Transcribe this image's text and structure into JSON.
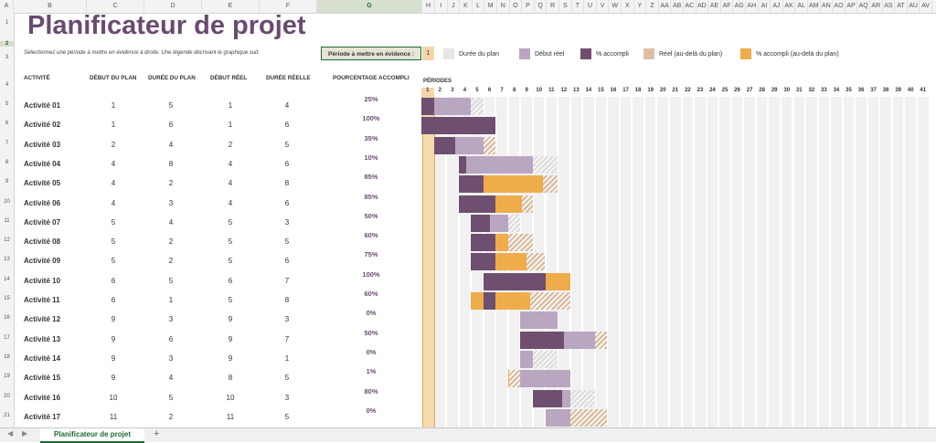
{
  "sheet": {
    "title": "Planificateur de projet",
    "subtitle": "Sélectionnez une période à mettre en évidence à droite.  Une légende décrivant le graphique suit.",
    "highlight_label": "Période à mettre en évidence :",
    "highlight_value": "1"
  },
  "legend": [
    {
      "label": "Durée du plan",
      "color": "#e6e6e6"
    },
    {
      "label": "Début réel",
      "color": "#b9a6c1"
    },
    {
      "label": "% accompli",
      "color": "#6f4f6f"
    },
    {
      "label": "Réel (au-delà du plan)",
      "color": "#dcc0a6"
    },
    {
      "label": "% accompli (au-delà du plan)",
      "color": "#eeac4a"
    }
  ],
  "headers": {
    "activity": "ACTIVITÉ",
    "plan_start": "DÉBUT DU PLAN",
    "plan_duration": "DURÉE DU PLAN",
    "actual_start": "DÉBUT RÉEL",
    "actual_duration": "DURÉE RÉELLE",
    "percent": "POURCENTAGE ACCOMPLI",
    "periods": "PÉRIODES"
  },
  "activities": [
    {
      "name": "Activité 01",
      "plan_start": "1",
      "plan_dur": "5",
      "act_start": "1",
      "act_dur": "4",
      "pct": "25%"
    },
    {
      "name": "Activité 02",
      "plan_start": "1",
      "plan_dur": "6",
      "act_start": "1",
      "act_dur": "6",
      "pct": "100%"
    },
    {
      "name": "Activité 03",
      "plan_start": "2",
      "plan_dur": "4",
      "act_start": "2",
      "act_dur": "5",
      "pct": "35%"
    },
    {
      "name": "Activité 04",
      "plan_start": "4",
      "plan_dur": "8",
      "act_start": "4",
      "act_dur": "6",
      "pct": "10%"
    },
    {
      "name": "Activité 05",
      "plan_start": "4",
      "plan_dur": "2",
      "act_start": "4",
      "act_dur": "8",
      "pct": "85%"
    },
    {
      "name": "Activité 06",
      "plan_start": "4",
      "plan_dur": "3",
      "act_start": "4",
      "act_dur": "6",
      "pct": "85%"
    },
    {
      "name": "Activité 07",
      "plan_start": "5",
      "plan_dur": "4",
      "act_start": "5",
      "act_dur": "3",
      "pct": "50%"
    },
    {
      "name": "Activité 08",
      "plan_start": "5",
      "plan_dur": "2",
      "act_start": "5",
      "act_dur": "5",
      "pct": "60%"
    },
    {
      "name": "Activité 09",
      "plan_start": "5",
      "plan_dur": "2",
      "act_start": "5",
      "act_dur": "6",
      "pct": "75%"
    },
    {
      "name": "Activité 10",
      "plan_start": "6",
      "plan_dur": "5",
      "act_start": "6",
      "act_dur": "7",
      "pct": "100%"
    },
    {
      "name": "Activité 11",
      "plan_start": "6",
      "plan_dur": "1",
      "act_start": "5",
      "act_dur": "8",
      "pct": "60%"
    },
    {
      "name": "Activité 12",
      "plan_start": "9",
      "plan_dur": "3",
      "act_start": "9",
      "act_dur": "3",
      "pct": "0%"
    },
    {
      "name": "Activité 13",
      "plan_start": "9",
      "plan_dur": "6",
      "act_start": "9",
      "act_dur": "7",
      "pct": "50%"
    },
    {
      "name": "Activité 14",
      "plan_start": "9",
      "plan_dur": "3",
      "act_start": "9",
      "act_dur": "1",
      "pct": "0%"
    },
    {
      "name": "Activité 15",
      "plan_start": "9",
      "plan_dur": "4",
      "act_start": "8",
      "act_dur": "5",
      "pct": "1%"
    },
    {
      "name": "Activité 16",
      "plan_start": "10",
      "plan_dur": "5",
      "act_start": "10",
      "act_dur": "3",
      "pct": "80%"
    },
    {
      "name": "Activité 17",
      "plan_start": "11",
      "plan_dur": "2",
      "act_start": "11",
      "act_dur": "5",
      "pct": "0%"
    }
  ],
  "periods": [
    "1",
    "2",
    "3",
    "4",
    "5",
    "6",
    "7",
    "8",
    "9",
    "10",
    "11",
    "12",
    "13",
    "14",
    "15",
    "16",
    "17",
    "18",
    "19",
    "20",
    "21",
    "22",
    "23",
    "24",
    "25",
    "26",
    "27",
    "28",
    "29",
    "30",
    "31",
    "32",
    "33",
    "34",
    "35",
    "36",
    "37",
    "38",
    "39",
    "40",
    "41"
  ],
  "columns": [
    "A",
    "B",
    "C",
    "D",
    "E",
    "F",
    "G",
    "H",
    "I",
    "J",
    "K",
    "L",
    "M",
    "N",
    "O",
    "P",
    "Q",
    "R",
    "S",
    "T",
    "U",
    "V",
    "W",
    "X",
    "Y",
    "Z",
    "AA",
    "AB",
    "AC",
    "AD",
    "AE",
    "AF",
    "AG",
    "AH",
    "AI",
    "AJ",
    "AK",
    "AL",
    "AM",
    "AN",
    "AO",
    "AP",
    "AQ",
    "AR",
    "AS",
    "AT",
    "AU",
    "AV"
  ],
  "row_numbers": [
    "1",
    "2",
    "3",
    "4",
    "5",
    "6",
    "7",
    "8",
    "9",
    "10",
    "11",
    "12",
    "13",
    "14",
    "15",
    "16",
    "17",
    "18",
    "19",
    "20",
    "21"
  ],
  "tabs": {
    "active": "Planificateur de projet",
    "add": "+",
    "prev": "◀",
    "next": "▶"
  }
}
